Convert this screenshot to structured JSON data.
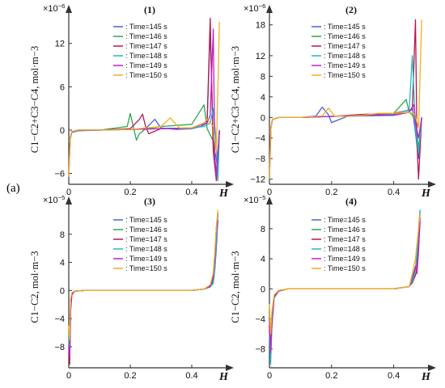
{
  "figure_label": "(a)",
  "colors": {
    "t145": "#4a5fe0",
    "t146": "#2aa84a",
    "t147": "#b5184c",
    "t148": "#22b8c8",
    "t149": "#c020c8",
    "t150": "#f0b020"
  },
  "chart_data": [
    {
      "type": "line",
      "title": "(1)",
      "xlabel": "H",
      "ylabel": "C1−C2+C3−C4, mol·m−3",
      "scale_label": "×10−6",
      "xlim": [
        0,
        0.5
      ],
      "ylim": [
        -7.5,
        16
      ],
      "xticks": [
        "0",
        "0.2",
        "0.4"
      ],
      "xtick_values": [
        0,
        0.2,
        0.4
      ],
      "yticks": [
        "−6",
        "0",
        "6",
        "12"
      ],
      "ytick_values": [
        -6,
        0,
        6,
        12
      ],
      "legend": [
        "Time=145 s",
        "Time=146 s",
        "Time=147 s",
        "Time=148 s",
        "Time=149 s",
        "Time=150 s"
      ],
      "legend_prefix": ": ",
      "series": [
        {
          "name": "Time=145 s",
          "color": "#4a5fe0",
          "x": [
            0,
            0.005,
            0.01,
            0.03,
            0.1,
            0.2,
            0.25,
            0.28,
            0.3,
            0.35,
            0.4,
            0.43,
            0.45,
            0.46,
            0.47,
            0.48,
            0.485,
            0.49
          ],
          "y": [
            -6,
            -1.2,
            -0.3,
            -0.1,
            0,
            0.1,
            0.2,
            1.5,
            0.3,
            0.1,
            0.2,
            0.5,
            1,
            14,
            -2,
            -4,
            -6,
            0
          ]
        },
        {
          "name": "Time=146 s",
          "color": "#2aa84a",
          "x": [
            0,
            0.005,
            0.01,
            0.03,
            0.1,
            0.19,
            0.2,
            0.21,
            0.22,
            0.23,
            0.25,
            0.3,
            0.4,
            0.44,
            0.45,
            0.47,
            0.48,
            0.49
          ],
          "y": [
            -5.5,
            -1,
            -0.2,
            0,
            0,
            0.5,
            2.3,
            0.5,
            -1.4,
            -0.5,
            0.2,
            0.5,
            0.8,
            3.5,
            0.2,
            -1.5,
            -6,
            0
          ]
        },
        {
          "name": "Time=147 s",
          "color": "#b5184c",
          "x": [
            0,
            0.005,
            0.01,
            0.03,
            0.1,
            0.2,
            0.23,
            0.24,
            0.25,
            0.26,
            0.3,
            0.4,
            0.45,
            0.46,
            0.47,
            0.48,
            0.49
          ],
          "y": [
            -5,
            -1,
            -0.2,
            0,
            0,
            0.2,
            1.5,
            2.2,
            0.5,
            -0.5,
            0.2,
            0.3,
            1,
            15.5,
            -3,
            -7,
            0
          ]
        },
        {
          "name": "Time=148 s",
          "color": "#22b8c8",
          "x": [
            0,
            0.005,
            0.01,
            0.03,
            0.1,
            0.2,
            0.3,
            0.4,
            0.44,
            0.46,
            0.47,
            0.48,
            0.485,
            0.49
          ],
          "y": [
            -6.5,
            -1,
            -0.2,
            0,
            0,
            0.1,
            0.2,
            0.3,
            0.5,
            1,
            3,
            -2,
            -7,
            0
          ]
        },
        {
          "name": "Time=149 s",
          "color": "#c020c8",
          "x": [
            0,
            0.005,
            0.01,
            0.03,
            0.1,
            0.2,
            0.3,
            0.4,
            0.45,
            0.46,
            0.47,
            0.475,
            0.48,
            0.49
          ],
          "y": [
            -6,
            -1,
            -0.2,
            0,
            0,
            0.1,
            0.2,
            0.3,
            1,
            2,
            14,
            -4,
            -6.5,
            0
          ]
        },
        {
          "name": "Time=150 s",
          "color": "#f0b020",
          "x": [
            0,
            0.005,
            0.01,
            0.03,
            0.1,
            0.2,
            0.3,
            0.33,
            0.36,
            0.4,
            0.44,
            0.45,
            0.47,
            0.48,
            0.49
          ],
          "y": [
            -6.5,
            -1,
            -0.2,
            0,
            0,
            0.1,
            0.5,
            1.7,
            0.3,
            0.3,
            1,
            1.5,
            0.5,
            -3,
            15
          ]
        }
      ]
    },
    {
      "type": "line",
      "title": "(2)",
      "xlabel": "H",
      "ylabel": "C1−C2+C3−C4, mol·m−3",
      "scale_label": "×10−6",
      "xlim": [
        0,
        0.5
      ],
      "ylim": [
        -13,
        20
      ],
      "xticks": [
        "0",
        "0.2",
        "0.4"
      ],
      "xtick_values": [
        0,
        0.2,
        0.4
      ],
      "yticks": [
        "−12",
        "−8",
        "−4",
        "0",
        "4",
        "8",
        "12",
        "18"
      ],
      "ytick_values": [
        -12,
        -8,
        -4,
        0,
        4,
        8,
        12,
        18
      ],
      "legend": [
        "Time=145 s",
        "Time=146 s",
        "Time=147 s",
        "Time=148 s",
        "Time=149 s",
        "Time=150 s"
      ],
      "legend_prefix": ": ",
      "series": [
        {
          "name": "Time=145 s",
          "color": "#4a5fe0",
          "x": [
            0,
            0.005,
            0.01,
            0.03,
            0.1,
            0.15,
            0.17,
            0.19,
            0.2,
            0.25,
            0.3,
            0.4,
            0.45,
            0.46,
            0.47,
            0.48,
            0.49
          ],
          "y": [
            -12,
            -2,
            -0.4,
            0,
            0,
            0.3,
            2,
            0.5,
            -1,
            0.2,
            0.3,
            0.4,
            1,
            2,
            -3,
            -8,
            0
          ]
        },
        {
          "name": "Time=146 s",
          "color": "#2aa84a",
          "x": [
            0,
            0.005,
            0.01,
            0.03,
            0.1,
            0.2,
            0.3,
            0.4,
            0.44,
            0.45,
            0.46,
            0.47,
            0.48,
            0.49
          ],
          "y": [
            -11,
            -2,
            -0.4,
            0,
            0,
            0.2,
            0.5,
            0.8,
            3.5,
            1,
            0.5,
            -1,
            -6,
            0
          ]
        },
        {
          "name": "Time=147 s",
          "color": "#b5184c",
          "x": [
            0,
            0.005,
            0.01,
            0.03,
            0.1,
            0.2,
            0.3,
            0.4,
            0.46,
            0.47,
            0.475,
            0.48,
            0.49
          ],
          "y": [
            -10,
            -2,
            -0.4,
            0,
            0,
            0.2,
            0.6,
            0.8,
            1.5,
            19,
            -5,
            -12,
            0
          ]
        },
        {
          "name": "Time=148 s",
          "color": "#22b8c8",
          "x": [
            0,
            0.005,
            0.01,
            0.03,
            0.1,
            0.2,
            0.3,
            0.4,
            0.45,
            0.46,
            0.47,
            0.48,
            0.49
          ],
          "y": [
            -12,
            -2,
            -0.4,
            0,
            0,
            0.2,
            0.4,
            0.6,
            1.5,
            12,
            -2,
            -7,
            0
          ]
        },
        {
          "name": "Time=149 s",
          "color": "#c020c8",
          "x": [
            0,
            0.005,
            0.01,
            0.03,
            0.1,
            0.2,
            0.3,
            0.4,
            0.45,
            0.465,
            0.47,
            0.48,
            0.49
          ],
          "y": [
            -11,
            -2,
            -0.4,
            0,
            0,
            0.2,
            0.4,
            0.5,
            1,
            2.5,
            -1,
            -4,
            0
          ]
        },
        {
          "name": "Time=150 s",
          "color": "#f0b020",
          "x": [
            0,
            0.005,
            0.01,
            0.03,
            0.1,
            0.17,
            0.19,
            0.21,
            0.25,
            0.3,
            0.35,
            0.4,
            0.45,
            0.47,
            0.48,
            0.49
          ],
          "y": [
            -12,
            -2,
            -0.4,
            0,
            0,
            0.3,
            1.8,
            0.3,
            0.2,
            0.4,
            0.8,
            0.8,
            1,
            0.5,
            -2,
            19
          ]
        }
      ]
    },
    {
      "type": "line",
      "title": "(3)",
      "xlabel": "H",
      "ylabel": "C1−C2, mol·m−3",
      "scale_label": "×10−5",
      "xlim": [
        0,
        0.5
      ],
      "ylim": [
        -11,
        12
      ],
      "xticks": [
        "0",
        "0.2",
        "0.4"
      ],
      "xtick_values": [
        0,
        0.2,
        0.4
      ],
      "yticks": [
        "−8",
        "−4",
        "0",
        "4",
        "8"
      ],
      "ytick_values": [
        -8,
        -4,
        0,
        4,
        8
      ],
      "legend": [
        "Time=145 s",
        "Time=146 s",
        "Time=147 s",
        "Time=148 s",
        "Time=149 s",
        "Time=150 s"
      ],
      "legend_prefix": ": ",
      "series": [
        {
          "name": "Time=145 s",
          "color": "#4a5fe0",
          "x": [
            0,
            0.003,
            0.006,
            0.01,
            0.02,
            0.05,
            0.1,
            0.2,
            0.3,
            0.4,
            0.44,
            0.46,
            0.47,
            0.475,
            0.48,
            0.485
          ],
          "y": [
            -8,
            -10,
            -2,
            -0.5,
            -0.1,
            0,
            0,
            0,
            0,
            0,
            0.2,
            0.6,
            1.2,
            3,
            6,
            10
          ]
        },
        {
          "name": "Time=146 s",
          "color": "#2aa84a",
          "x": [
            0,
            0.003,
            0.006,
            0.01,
            0.02,
            0.05,
            0.1,
            0.2,
            0.3,
            0.4,
            0.44,
            0.46,
            0.47,
            0.475,
            0.48,
            0.485
          ],
          "y": [
            -7,
            -9,
            -1.5,
            -0.4,
            -0.1,
            0,
            0,
            0,
            0,
            0,
            0.2,
            0.5,
            1.5,
            4,
            8,
            11
          ]
        },
        {
          "name": "Time=147 s",
          "color": "#b5184c",
          "x": [
            0,
            0.003,
            0.006,
            0.01,
            0.02,
            0.05,
            0.1,
            0.2,
            0.3,
            0.4,
            0.44,
            0.46,
            0.47,
            0.475,
            0.48,
            0.485
          ],
          "y": [
            -9,
            -10.5,
            -3,
            -0.6,
            -0.1,
            0,
            0,
            0,
            0,
            0,
            0.2,
            0.7,
            2,
            5,
            9,
            11
          ]
        },
        {
          "name": "Time=148 s",
          "color": "#22b8c8",
          "x": [
            0,
            0.003,
            0.006,
            0.01,
            0.02,
            0.05,
            0.1,
            0.2,
            0.3,
            0.4,
            0.44,
            0.46,
            0.47,
            0.475,
            0.48,
            0.485
          ],
          "y": [
            -6,
            -8,
            -1.5,
            -0.4,
            -0.1,
            0,
            0,
            0,
            0,
            0,
            0.2,
            0.5,
            1,
            3,
            7,
            10.5
          ]
        },
        {
          "name": "Time=149 s",
          "color": "#c020c8",
          "x": [
            0,
            0.003,
            0.006,
            0.01,
            0.02,
            0.05,
            0.1,
            0.2,
            0.3,
            0.4,
            0.44,
            0.46,
            0.47,
            0.475,
            0.48,
            0.485
          ],
          "y": [
            -8,
            -9.5,
            -2.5,
            -0.5,
            -0.1,
            0,
            0,
            0,
            0,
            0,
            0.2,
            0.6,
            1.8,
            4.5,
            8.5,
            10
          ]
        },
        {
          "name": "Time=150 s",
          "color": "#f0b020",
          "x": [
            0,
            0.003,
            0.006,
            0.01,
            0.02,
            0.05,
            0.1,
            0.2,
            0.3,
            0.4,
            0.44,
            0.46,
            0.47,
            0.475,
            0.48,
            0.485
          ],
          "y": [
            -5,
            -7,
            -1.2,
            -0.3,
            -0.1,
            0,
            0,
            0,
            0,
            0,
            0.2,
            0.8,
            2.5,
            5.5,
            9,
            11.5
          ]
        }
      ]
    },
    {
      "type": "line",
      "title": "(4)",
      "xlabel": "H",
      "ylabel": "C1−C2, mol·m−3",
      "scale_label": "×10−5",
      "xlim": [
        0,
        0.5
      ],
      "ylim": [
        -10.5,
        11
      ],
      "xticks": [
        "0",
        "0.2",
        "0.4"
      ],
      "xtick_values": [
        0,
        0.2,
        0.4
      ],
      "yticks": [
        "−8",
        "−4",
        "0",
        "4",
        "8"
      ],
      "ytick_values": [
        -8,
        -4,
        0,
        4,
        8
      ],
      "legend": [
        "Time=145 s",
        "Time=146 s",
        "Time=147 s",
        "Time=148 s",
        "Time=149 s",
        "Time=150 s"
      ],
      "legend_prefix": ": ",
      "series": [
        {
          "name": "Time=145 s",
          "color": "#4a5fe0",
          "x": [
            0,
            0.004,
            0.008,
            0.015,
            0.03,
            0.06,
            0.1,
            0.2,
            0.3,
            0.4,
            0.45,
            0.46,
            0.47,
            0.475,
            0.48,
            0.485
          ],
          "y": [
            -4,
            -8,
            -4,
            -1,
            -0.3,
            0,
            0,
            0,
            0,
            0,
            0.3,
            1,
            2,
            4,
            7,
            10
          ]
        },
        {
          "name": "Time=146 s",
          "color": "#2aa84a",
          "x": [
            0,
            0.004,
            0.008,
            0.015,
            0.03,
            0.06,
            0.1,
            0.2,
            0.3,
            0.4,
            0.45,
            0.46,
            0.47,
            0.475,
            0.48,
            0.485
          ],
          "y": [
            -3,
            -7,
            -3.5,
            -1,
            -0.3,
            0,
            0,
            0,
            0,
            0,
            0.3,
            1.2,
            2.5,
            5,
            8,
            10.5
          ]
        },
        {
          "name": "Time=147 s",
          "color": "#b5184c",
          "x": [
            0,
            0.004,
            0.008,
            0.015,
            0.03,
            0.06,
            0.1,
            0.2,
            0.3,
            0.4,
            0.45,
            0.46,
            0.47,
            0.475,
            0.48,
            0.485
          ],
          "y": [
            -5,
            -9,
            -5,
            -1.2,
            -0.3,
            0,
            0,
            0,
            0,
            0,
            0.3,
            0.8,
            1.8,
            3.5,
            6.5,
            9.5
          ]
        },
        {
          "name": "Time=148 s",
          "color": "#22b8c8",
          "x": [
            0,
            0.004,
            0.008,
            0.015,
            0.03,
            0.06,
            0.1,
            0.2,
            0.3,
            0.4,
            0.45,
            0.46,
            0.47,
            0.475,
            0.48,
            0.485
          ],
          "y": [
            -6,
            -10,
            -4.5,
            -1.2,
            -0.3,
            0,
            0,
            0,
            0,
            0,
            0.3,
            1,
            2.2,
            4.5,
            7.5,
            10.5
          ]
        },
        {
          "name": "Time=149 s",
          "color": "#c020c8",
          "x": [
            0,
            0.004,
            0.008,
            0.015,
            0.03,
            0.06,
            0.1,
            0.2,
            0.3,
            0.4,
            0.45,
            0.46,
            0.47,
            0.475,
            0.48,
            0.485
          ],
          "y": [
            -4,
            -8.5,
            -4,
            -1,
            -0.3,
            0,
            0,
            0,
            0,
            0,
            0.3,
            1.5,
            3,
            2,
            5,
            9
          ]
        },
        {
          "name": "Time=150 s",
          "color": "#f0b020",
          "x": [
            0,
            0.004,
            0.008,
            0.015,
            0.03,
            0.06,
            0.1,
            0.2,
            0.3,
            0.4,
            0.45,
            0.46,
            0.47,
            0.475,
            0.48,
            0.485
          ],
          "y": [
            -2,
            -6,
            -3,
            -0.8,
            -0.2,
            0,
            0,
            0,
            0,
            0,
            0.3,
            2,
            4,
            6,
            8,
            10
          ]
        }
      ]
    }
  ]
}
